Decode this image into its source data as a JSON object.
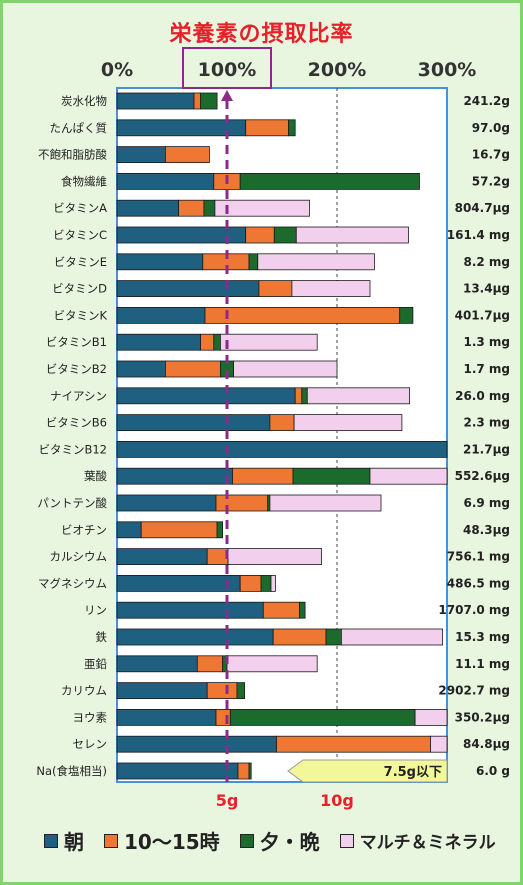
{
  "title": "栄養素の摂取比率",
  "x_ticks": [
    "0%",
    "100%",
    "200%",
    "300%"
  ],
  "bottom_ticks": [
    "5g",
    "10g"
  ],
  "limit_label": "7.5g以下",
  "colors": {
    "morning": "#1f5f80",
    "noon": "#ee7733",
    "evening": "#1d6b2c",
    "multi": "#f3cfee",
    "border": "#4a90d9",
    "dashed": "#8b2a8b",
    "frame": "#7fd46a",
    "title": "#e8202a"
  },
  "chart_data": {
    "type": "bar",
    "stacked": true,
    "orientation": "horizontal",
    "title": "栄養素の摂取比率",
    "xlim": [
      0,
      300
    ],
    "x_unit": "%",
    "reference_line": 100,
    "series": [
      {
        "name": "朝",
        "values": [
          70,
          117,
          44,
          88,
          56,
          117,
          78,
          129,
          80,
          76,
          44,
          162,
          139,
          300,
          105,
          90,
          22,
          82,
          112,
          133,
          142,
          73,
          82,
          90,
          145,
          110
        ]
      },
      {
        "name": "10〜15時",
        "values": [
          6,
          39,
          40,
          24,
          23,
          26,
          42,
          30,
          177,
          12,
          50,
          6,
          22,
          0,
          55,
          47,
          69,
          19,
          19,
          33,
          48,
          23,
          27,
          13,
          140,
          10
        ]
      },
      {
        "name": "夕・晩",
        "values": [
          15,
          6,
          0,
          163,
          10,
          20,
          8,
          0,
          12,
          6,
          12,
          5,
          0,
          0,
          70,
          2,
          5,
          0,
          9,
          5,
          14,
          4,
          7,
          168,
          0,
          2
        ]
      },
      {
        "name": "マルチ＆ミネラル",
        "values": [
          0,
          0,
          0,
          0,
          86,
          102,
          106,
          71,
          0,
          88,
          94,
          93,
          98,
          0,
          70,
          101,
          0,
          85,
          4,
          0,
          92,
          82,
          0,
          32,
          15,
          0
        ]
      }
    ],
    "categories": [
      "炭水化物",
      "たんぱく質",
      "不飽和脂肪酸",
      "食物繊維",
      "ビタミンA",
      "ビタミンC",
      "ビタミンE",
      "ビタミンD",
      "ビタミンK",
      "ビタミンB1",
      "ビタミンB2",
      "ナイアシン",
      "ビタミンB6",
      "ビタミンB12",
      "葉酸",
      "パントテン酸",
      "ビオチン",
      "カルシウム",
      "マグネシウム",
      "リン",
      "鉄",
      "亜鉛",
      "カリウム",
      "ヨウ素",
      "セレン",
      "Na(食塩相当)"
    ],
    "amounts": [
      "241.2g",
      "97.0g",
      "16.7g",
      "57.2g",
      "804.7μg",
      "161.4 mg",
      "8.2 mg",
      "13.4μg",
      "401.7μg",
      "1.3 mg",
      "1.7 mg",
      "26.0 mg",
      "2.3 mg",
      "21.7μg",
      "552.6μg",
      "6.9 mg",
      "48.3μg",
      "756.1 mg",
      "486.5 mg",
      "1707.0 mg",
      "15.3 mg",
      "11.1 mg",
      "2902.7 mg",
      "350.2μg",
      "84.8μg",
      "6.0 g"
    ],
    "legend": [
      "朝",
      "10〜15時",
      "夕・晩",
      "マルチ＆ミネラル"
    ],
    "legend_position": "bottom"
  }
}
